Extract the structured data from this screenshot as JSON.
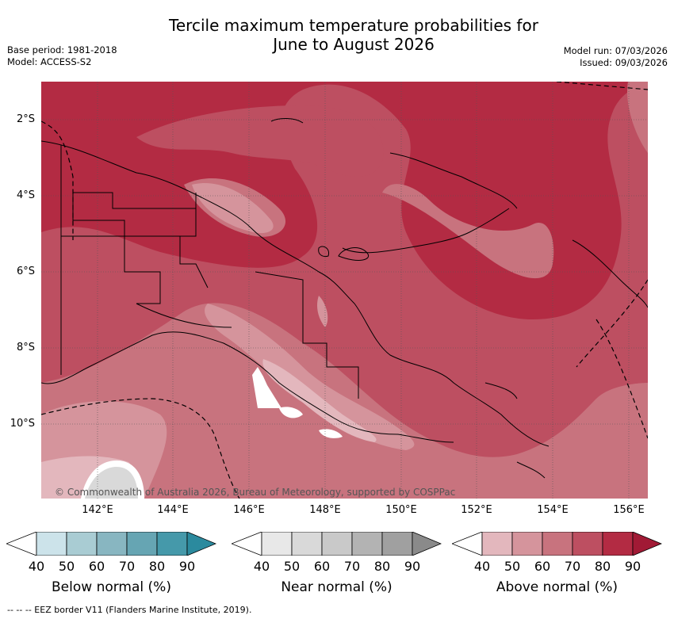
{
  "title_line1": "Tercile maximum temperature probabilities for",
  "title_line2": "June to August 2026",
  "meta_left": [
    "Base period: 1981-2018",
    "Model: ACCESS-S2"
  ],
  "meta_right": [
    "Model run: 07/03/2026",
    "Issued: 09/03/2026"
  ],
  "lat_labels": [
    "2°S",
    "4°S",
    "6°S",
    "8°S",
    "10°S"
  ],
  "lon_labels": [
    "142°E",
    "144°E",
    "146°E",
    "148°E",
    "150°E",
    "152°E",
    "154°E",
    "156°E"
  ],
  "credit": "© Commonwealth of Australia 2026, Bureau of Meteorology, supported by COSPPac",
  "colorbars": [
    {
      "label": "Below normal (%)",
      "ticks": [
        "40",
        "50",
        "60",
        "70",
        "80",
        "90"
      ],
      "colors": [
        "#ffffff",
        "#cce3ea",
        "#a9ccd3",
        "#88b6c1",
        "#66a5b3",
        "#4599aa",
        "#2b8a9e"
      ]
    },
    {
      "label": "Near normal (%)",
      "ticks": [
        "40",
        "50",
        "60",
        "70",
        "80",
        "90"
      ],
      "colors": [
        "#ffffff",
        "#e8e8e8",
        "#d9d9d9",
        "#c9c9c9",
        "#b3b3b3",
        "#a0a0a0",
        "#8a8a8a"
      ]
    },
    {
      "label": "Above normal (%)",
      "ticks": [
        "40",
        "50",
        "60",
        "70",
        "80",
        "90"
      ],
      "colors": [
        "#ffffff",
        "#e3b7bd",
        "#d5949c",
        "#c8737e",
        "#bd4f61",
        "#b32b43",
        "#a11a35"
      ]
    }
  ],
  "footnote": "-- -- -- EEZ border V11 (Flanders Marine Institute, 2019)."
}
